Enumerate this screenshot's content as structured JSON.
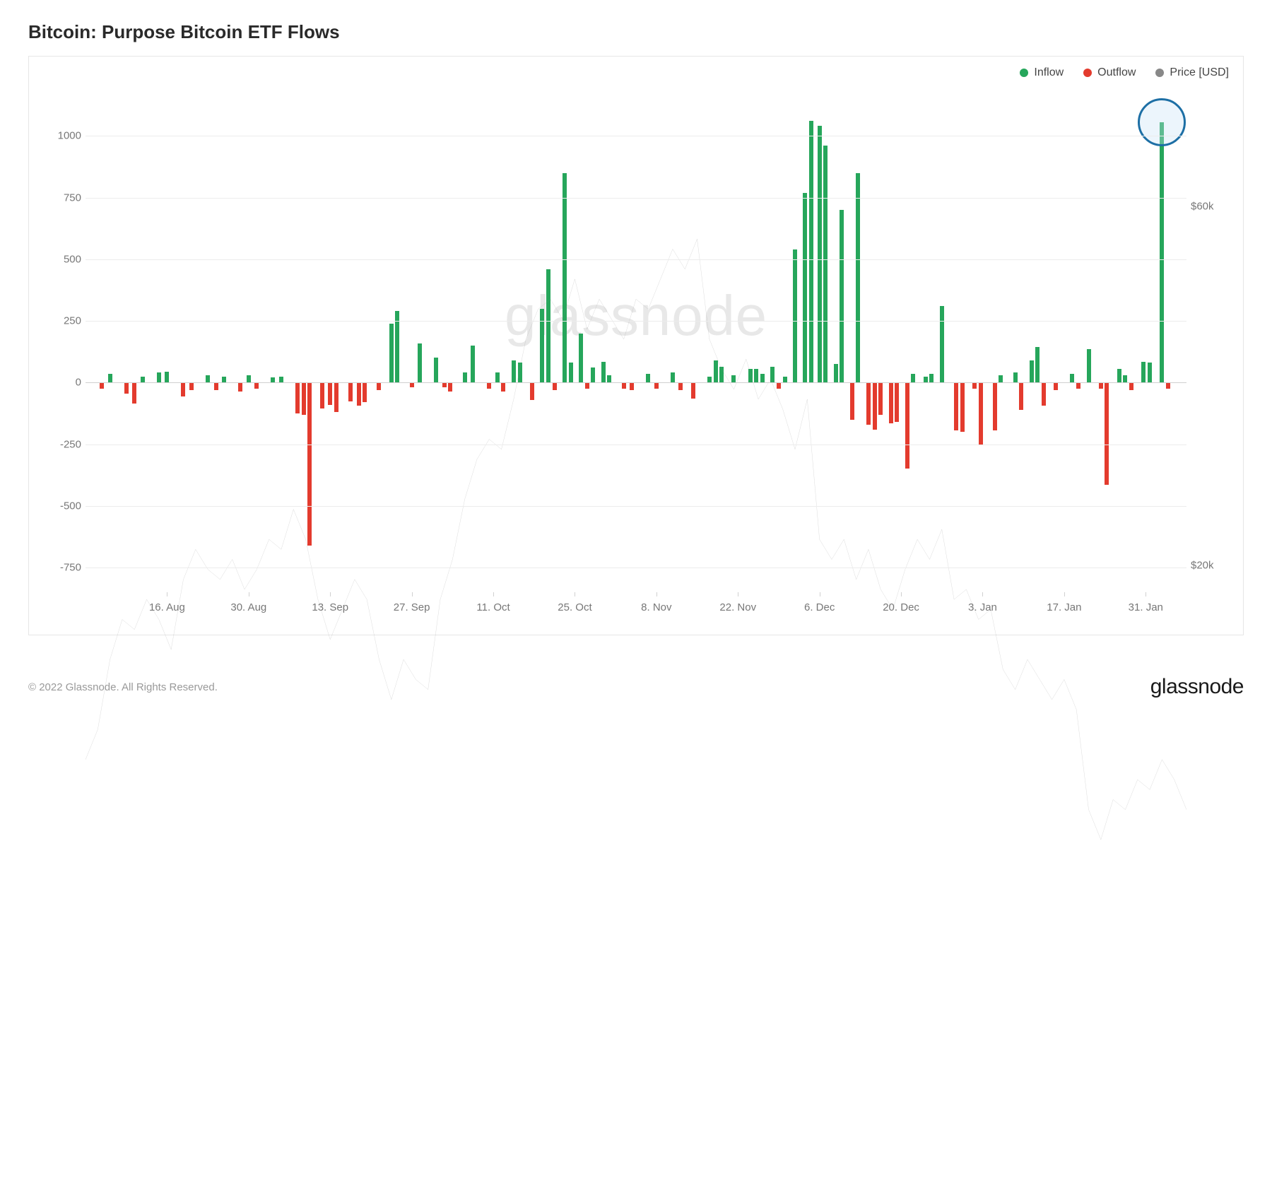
{
  "title": "Bitcoin: Purpose Bitcoin ETF Flows",
  "copyright": "© 2022 Glassnode. All Rights Reserved.",
  "brand": "glassnode",
  "watermark": "glassnode",
  "legend": {
    "inflow": "Inflow",
    "outflow": "Outflow",
    "price": "Price [USD]"
  },
  "chart": {
    "type": "bar+line",
    "colors": {
      "inflow": "#26a65b",
      "outflow": "#e33b2e",
      "price": "#888888",
      "grid": "#ececec",
      "baseline": "#d0d0d0",
      "axis_text": "#777777",
      "background": "#ffffff",
      "circle": "#1d6fa5"
    },
    "y_left": {
      "min": -850,
      "max": 1150,
      "ticks": [
        -750,
        -500,
        -250,
        0,
        250,
        500,
        750,
        1000
      ]
    },
    "y_right": {
      "min": 17000,
      "max": 72000,
      "ticks": [
        {
          "v": 20000,
          "label": "$20k"
        },
        {
          "v": 60000,
          "label": "$60k"
        }
      ]
    },
    "x_labels": [
      {
        "t": 2,
        "label": "16. Aug"
      },
      {
        "t": 4,
        "label": "30. Aug"
      },
      {
        "t": 6,
        "label": "13. Sep"
      },
      {
        "t": 8,
        "label": "27. Sep"
      },
      {
        "t": 10,
        "label": "11. Oct"
      },
      {
        "t": 12,
        "label": "25. Oct"
      },
      {
        "t": 14,
        "label": "8. Nov"
      },
      {
        "t": 16,
        "label": "22. Nov"
      },
      {
        "t": 18,
        "label": "6. Dec"
      },
      {
        "t": 20,
        "label": "20. Dec"
      },
      {
        "t": 22,
        "label": "3. Jan"
      },
      {
        "t": 24,
        "label": "17. Jan"
      },
      {
        "t": 26,
        "label": "31. Jan"
      }
    ],
    "x_range": [
      0,
      27
    ],
    "bar_data": [
      {
        "t": 0.4,
        "v": -25
      },
      {
        "t": 0.6,
        "v": 35
      },
      {
        "t": 1.0,
        "v": -45
      },
      {
        "t": 1.2,
        "v": -85
      },
      {
        "t": 1.4,
        "v": 25
      },
      {
        "t": 1.8,
        "v": 40
      },
      {
        "t": 2.0,
        "v": 45
      },
      {
        "t": 2.4,
        "v": -55
      },
      {
        "t": 2.6,
        "v": -30
      },
      {
        "t": 3.0,
        "v": 30
      },
      {
        "t": 3.2,
        "v": -30
      },
      {
        "t": 3.4,
        "v": 25
      },
      {
        "t": 3.8,
        "v": -35
      },
      {
        "t": 4.0,
        "v": 30
      },
      {
        "t": 4.2,
        "v": -25
      },
      {
        "t": 4.6,
        "v": 20
      },
      {
        "t": 4.8,
        "v": 25
      },
      {
        "t": 5.2,
        "v": -125
      },
      {
        "t": 5.35,
        "v": -130
      },
      {
        "t": 5.5,
        "v": -660
      },
      {
        "t": 5.8,
        "v": -105
      },
      {
        "t": 6.0,
        "v": -90
      },
      {
        "t": 6.15,
        "v": -120
      },
      {
        "t": 6.5,
        "v": -75
      },
      {
        "t": 6.7,
        "v": -95
      },
      {
        "t": 6.85,
        "v": -80
      },
      {
        "t": 7.2,
        "v": -30
      },
      {
        "t": 7.5,
        "v": 240
      },
      {
        "t": 7.65,
        "v": 290
      },
      {
        "t": 8.0,
        "v": -20
      },
      {
        "t": 8.2,
        "v": 160
      },
      {
        "t": 8.6,
        "v": 100
      },
      {
        "t": 8.8,
        "v": -20
      },
      {
        "t": 8.95,
        "v": -35
      },
      {
        "t": 9.3,
        "v": 40
      },
      {
        "t": 9.5,
        "v": 150
      },
      {
        "t": 9.9,
        "v": -25
      },
      {
        "t": 10.1,
        "v": 40
      },
      {
        "t": 10.25,
        "v": -35
      },
      {
        "t": 10.5,
        "v": 90
      },
      {
        "t": 10.65,
        "v": 80
      },
      {
        "t": 10.95,
        "v": -70
      },
      {
        "t": 11.2,
        "v": 300
      },
      {
        "t": 11.35,
        "v": 460
      },
      {
        "t": 11.5,
        "v": -30
      },
      {
        "t": 11.75,
        "v": 850
      },
      {
        "t": 11.9,
        "v": 80
      },
      {
        "t": 12.15,
        "v": 200
      },
      {
        "t": 12.3,
        "v": -25
      },
      {
        "t": 12.45,
        "v": 60
      },
      {
        "t": 12.7,
        "v": 85
      },
      {
        "t": 12.85,
        "v": 30
      },
      {
        "t": 13.2,
        "v": -25
      },
      {
        "t": 13.4,
        "v": -30
      },
      {
        "t": 13.8,
        "v": 35
      },
      {
        "t": 14.0,
        "v": -25
      },
      {
        "t": 14.4,
        "v": 40
      },
      {
        "t": 14.6,
        "v": -30
      },
      {
        "t": 14.9,
        "v": -65
      },
      {
        "t": 15.3,
        "v": 25
      },
      {
        "t": 15.45,
        "v": 90
      },
      {
        "t": 15.6,
        "v": 65
      },
      {
        "t": 15.9,
        "v": 30
      },
      {
        "t": 16.3,
        "v": 55
      },
      {
        "t": 16.45,
        "v": 55
      },
      {
        "t": 16.6,
        "v": 35
      },
      {
        "t": 16.85,
        "v": 65
      },
      {
        "t": 17.0,
        "v": -25
      },
      {
        "t": 17.15,
        "v": 25
      },
      {
        "t": 17.4,
        "v": 540
      },
      {
        "t": 17.65,
        "v": 770
      },
      {
        "t": 17.8,
        "v": 1060
      },
      {
        "t": 18.0,
        "v": 1040
      },
      {
        "t": 18.15,
        "v": 960
      },
      {
        "t": 18.4,
        "v": 75
      },
      {
        "t": 18.55,
        "v": 700
      },
      {
        "t": 18.8,
        "v": -150
      },
      {
        "t": 18.95,
        "v": 850
      },
      {
        "t": 19.2,
        "v": -170
      },
      {
        "t": 19.35,
        "v": -190
      },
      {
        "t": 19.5,
        "v": -130
      },
      {
        "t": 19.75,
        "v": -165
      },
      {
        "t": 19.9,
        "v": -160
      },
      {
        "t": 20.15,
        "v": -350
      },
      {
        "t": 20.3,
        "v": 35
      },
      {
        "t": 20.6,
        "v": 25
      },
      {
        "t": 20.75,
        "v": 35
      },
      {
        "t": 21.0,
        "v": 310
      },
      {
        "t": 21.35,
        "v": -195
      },
      {
        "t": 21.5,
        "v": -200
      },
      {
        "t": 21.8,
        "v": -25
      },
      {
        "t": 21.95,
        "v": -250
      },
      {
        "t": 22.3,
        "v": -195
      },
      {
        "t": 22.45,
        "v": 30
      },
      {
        "t": 22.8,
        "v": 40
      },
      {
        "t": 22.95,
        "v": -110
      },
      {
        "t": 23.2,
        "v": 90
      },
      {
        "t": 23.35,
        "v": 145
      },
      {
        "t": 23.5,
        "v": -95
      },
      {
        "t": 23.8,
        "v": -30
      },
      {
        "t": 24.2,
        "v": 35
      },
      {
        "t": 24.35,
        "v": -25
      },
      {
        "t": 24.6,
        "v": 135
      },
      {
        "t": 24.9,
        "v": -25
      },
      {
        "t": 25.05,
        "v": -415
      },
      {
        "t": 25.35,
        "v": 55
      },
      {
        "t": 25.5,
        "v": 30
      },
      {
        "t": 25.65,
        "v": -30
      },
      {
        "t": 25.95,
        "v": 85
      },
      {
        "t": 26.1,
        "v": 80
      },
      {
        "t": 26.4,
        "v": 1055
      },
      {
        "t": 26.55,
        "v": -25
      }
    ],
    "price_line": [
      {
        "t": 0.0,
        "p": 39000
      },
      {
        "t": 0.3,
        "p": 40500
      },
      {
        "t": 0.6,
        "p": 44000
      },
      {
        "t": 0.9,
        "p": 46000
      },
      {
        "t": 1.2,
        "p": 45500
      },
      {
        "t": 1.5,
        "p": 47000
      },
      {
        "t": 1.8,
        "p": 46000
      },
      {
        "t": 2.1,
        "p": 44500
      },
      {
        "t": 2.4,
        "p": 48000
      },
      {
        "t": 2.7,
        "p": 49500
      },
      {
        "t": 3.0,
        "p": 48500
      },
      {
        "t": 3.3,
        "p": 48000
      },
      {
        "t": 3.6,
        "p": 49000
      },
      {
        "t": 3.9,
        "p": 47500
      },
      {
        "t": 4.2,
        "p": 48500
      },
      {
        "t": 4.5,
        "p": 50000
      },
      {
        "t": 4.8,
        "p": 49500
      },
      {
        "t": 5.1,
        "p": 51500
      },
      {
        "t": 5.4,
        "p": 50000
      },
      {
        "t": 5.7,
        "p": 47000
      },
      {
        "t": 6.0,
        "p": 45000
      },
      {
        "t": 6.3,
        "p": 46500
      },
      {
        "t": 6.6,
        "p": 48000
      },
      {
        "t": 6.9,
        "p": 47000
      },
      {
        "t": 7.2,
        "p": 44000
      },
      {
        "t": 7.5,
        "p": 42000
      },
      {
        "t": 7.8,
        "p": 44000
      },
      {
        "t": 8.1,
        "p": 43000
      },
      {
        "t": 8.4,
        "p": 42500
      },
      {
        "t": 8.7,
        "p": 47000
      },
      {
        "t": 9.0,
        "p": 49000
      },
      {
        "t": 9.3,
        "p": 52000
      },
      {
        "t": 9.6,
        "p": 54000
      },
      {
        "t": 9.9,
        "p": 55000
      },
      {
        "t": 10.2,
        "p": 54500
      },
      {
        "t": 10.5,
        "p": 57000
      },
      {
        "t": 10.8,
        "p": 60000
      },
      {
        "t": 11.1,
        "p": 61500
      },
      {
        "t": 11.4,
        "p": 62000
      },
      {
        "t": 11.7,
        "p": 61000
      },
      {
        "t": 12.0,
        "p": 63000
      },
      {
        "t": 12.3,
        "p": 60500
      },
      {
        "t": 12.6,
        "p": 62000
      },
      {
        "t": 12.9,
        "p": 61000
      },
      {
        "t": 13.2,
        "p": 60000
      },
      {
        "t": 13.5,
        "p": 62000
      },
      {
        "t": 13.8,
        "p": 61500
      },
      {
        "t": 14.1,
        "p": 63000
      },
      {
        "t": 14.4,
        "p": 64500
      },
      {
        "t": 14.7,
        "p": 63500
      },
      {
        "t": 15.0,
        "p": 65000
      },
      {
        "t": 15.3,
        "p": 60000
      },
      {
        "t": 15.6,
        "p": 58500
      },
      {
        "t": 15.9,
        "p": 57500
      },
      {
        "t": 16.2,
        "p": 59000
      },
      {
        "t": 16.5,
        "p": 57000
      },
      {
        "t": 16.8,
        "p": 58000
      },
      {
        "t": 17.1,
        "p": 56500
      },
      {
        "t": 17.4,
        "p": 54500
      },
      {
        "t": 17.7,
        "p": 57000
      },
      {
        "t": 18.0,
        "p": 50000
      },
      {
        "t": 18.3,
        "p": 49000
      },
      {
        "t": 18.6,
        "p": 50000
      },
      {
        "t": 18.9,
        "p": 48000
      },
      {
        "t": 19.2,
        "p": 49500
      },
      {
        "t": 19.5,
        "p": 47500
      },
      {
        "t": 19.8,
        "p": 46500
      },
      {
        "t": 20.1,
        "p": 48500
      },
      {
        "t": 20.4,
        "p": 50000
      },
      {
        "t": 20.7,
        "p": 49000
      },
      {
        "t": 21.0,
        "p": 50500
      },
      {
        "t": 21.3,
        "p": 47000
      },
      {
        "t": 21.6,
        "p": 47500
      },
      {
        "t": 21.9,
        "p": 46000
      },
      {
        "t": 22.2,
        "p": 46500
      },
      {
        "t": 22.5,
        "p": 43500
      },
      {
        "t": 22.8,
        "p": 42500
      },
      {
        "t": 23.1,
        "p": 44000
      },
      {
        "t": 23.4,
        "p": 43000
      },
      {
        "t": 23.7,
        "p": 42000
      },
      {
        "t": 24.0,
        "p": 43000
      },
      {
        "t": 24.3,
        "p": 41500
      },
      {
        "t": 24.6,
        "p": 36500
      },
      {
        "t": 24.9,
        "p": 35000
      },
      {
        "t": 25.2,
        "p": 37000
      },
      {
        "t": 25.5,
        "p": 36500
      },
      {
        "t": 25.8,
        "p": 38000
      },
      {
        "t": 26.1,
        "p": 37500
      },
      {
        "t": 26.4,
        "p": 39000
      },
      {
        "t": 26.7,
        "p": 38000
      },
      {
        "t": 27.0,
        "p": 36500
      }
    ],
    "highlight": {
      "t": 26.4,
      "v": 1055
    }
  }
}
